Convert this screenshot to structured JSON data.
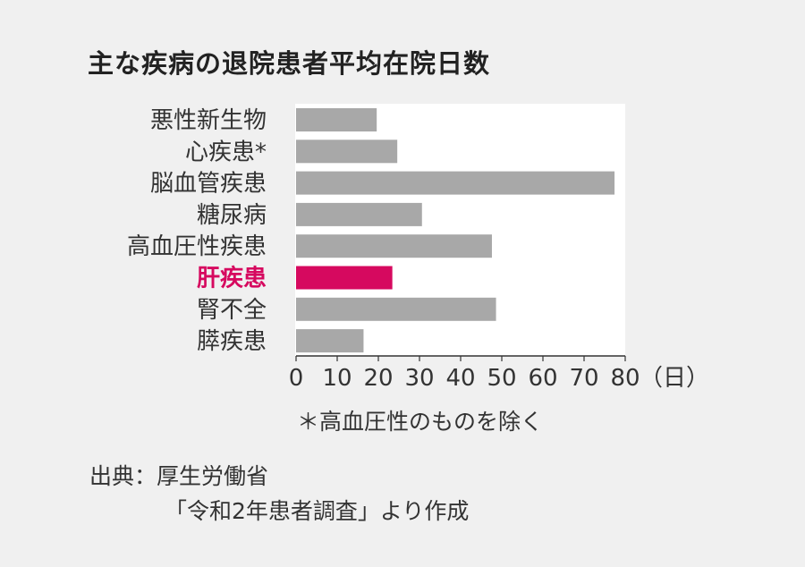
{
  "chart_data": {
    "type": "bar",
    "orientation": "horizontal",
    "title": "主な疾病の退院患者平均在院日数",
    "categories": [
      "悪性新生物",
      "心疾患*",
      "脳血管疾患",
      "糖尿病",
      "高血圧性疾患",
      "肝疾患",
      "腎不全",
      "膵疾患"
    ],
    "values": [
      19.6,
      24.6,
      77.4,
      30.6,
      47.6,
      23.4,
      48.6,
      16.4
    ],
    "highlight_index": 5,
    "xlim": [
      0,
      80
    ],
    "x_ticks": [
      "0",
      "10",
      "20",
      "30",
      "40",
      "50",
      "60",
      "70",
      "80"
    ],
    "x_unit": "（日）",
    "grid": false,
    "colors": {
      "bar": "#a8a8a8",
      "highlight": "#d6095f",
      "plot_bg": "#ffffff",
      "page_bg": "#f0f0f0"
    },
    "note": "＊高血圧性のものを除く"
  },
  "source": {
    "line1": "出典：厚生労働省",
    "line2": "「令和2年患者調査」より作成"
  }
}
